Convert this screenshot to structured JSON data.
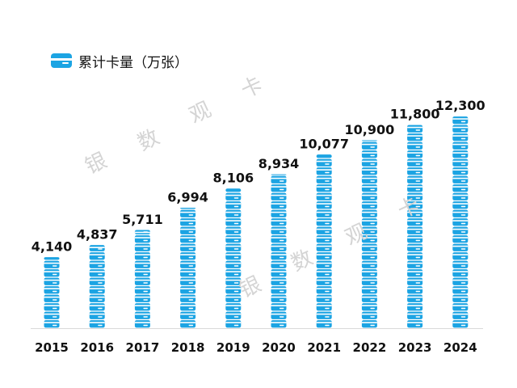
{
  "legend": {
    "label": "累计卡量（万张）",
    "icon": "card-icon"
  },
  "watermarks": [
    {
      "text": "银",
      "id": "a"
    },
    {
      "text": "数",
      "id": "b"
    },
    {
      "text": "观",
      "id": "c"
    },
    {
      "text": "卡",
      "id": "d"
    },
    {
      "text": "银",
      "id": "e"
    },
    {
      "text": "数",
      "id": "f"
    },
    {
      "text": "观",
      "id": "g"
    },
    {
      "text": "卡",
      "id": "h"
    }
  ],
  "colors": {
    "card": "#1ca4e3",
    "card_stripe": "#ffffff",
    "axis": "#d9d9d9",
    "text": "#111111"
  },
  "chart_data": {
    "type": "bar",
    "categories": [
      "2015",
      "2016",
      "2017",
      "2018",
      "2019",
      "2020",
      "2021",
      "2022",
      "2023",
      "2024"
    ],
    "series": [
      {
        "name": "累计卡量（万张）",
        "values": [
          4140,
          4837,
          5711,
          6994,
          8106,
          8934,
          10077,
          10900,
          11800,
          12300
        ],
        "labels": [
          "4,140",
          "4,837",
          "5,711",
          "6,994",
          "8,106",
          "8,934",
          "10,077",
          "10,900",
          "11,800",
          "12,300"
        ]
      }
    ],
    "title": "",
    "xlabel": "",
    "ylabel": "",
    "ylim": [
      0,
      12300
    ],
    "grid": false,
    "legend_position": "top-left",
    "bar_style": "stacked-card-pictograph"
  }
}
